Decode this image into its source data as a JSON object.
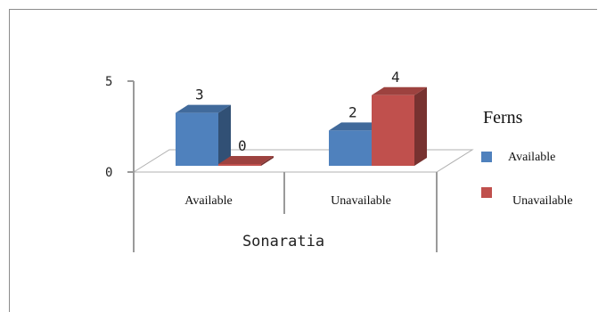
{
  "chart_data": {
    "type": "bar",
    "title": "",
    "xlabel": "Sonaratia",
    "ylabel": "",
    "ylim": [
      0,
      5
    ],
    "yticks": [
      "5",
      "0"
    ],
    "categories": [
      "Available",
      "Unavailable"
    ],
    "legend_title": "Ferns",
    "legend_position": "right",
    "series": [
      {
        "name": "Available",
        "values": [
          3,
          2
        ],
        "color": "#4f81bd"
      },
      {
        "name": "Unavailable",
        "values": [
          0,
          4
        ],
        "color": "#c0504d"
      }
    ]
  }
}
